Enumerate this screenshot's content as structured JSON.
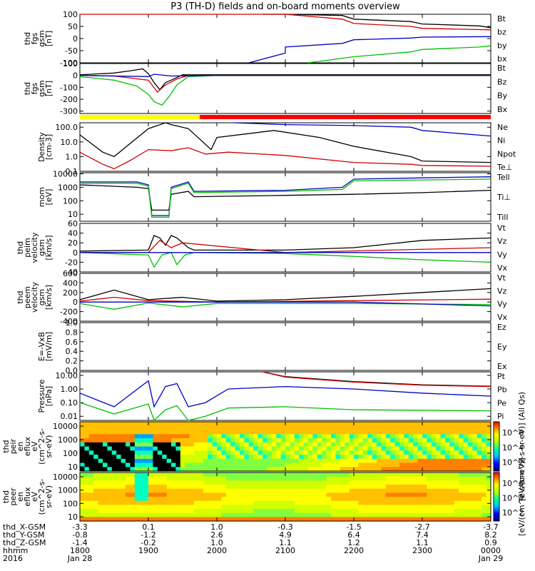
{
  "title": "P3 (TH-D) fields and on-board moments overview",
  "chart_data": [
    {
      "id": "fgs_zoom",
      "type": "line",
      "ylabel": [
        "thd",
        "fgs",
        "gsm",
        "[nT]"
      ],
      "ylim": [
        -100,
        100
      ],
      "yticks": [
        "100",
        "50",
        "0",
        "-50",
        "-100"
      ],
      "log": false,
      "series": [
        {
          "name": "Bt",
          "color": "#000000",
          "x": [
            2040,
            2100,
            2150,
            2200,
            2250,
            2300,
            2350,
            2400
          ],
          "y": [
            100,
            100,
            95,
            80,
            70,
            60,
            52,
            45
          ]
        },
        {
          "name": "bz",
          "color": "#d00000",
          "x": [
            1800,
            1930,
            2000,
            2100,
            2150,
            2200,
            2250,
            2300,
            2400
          ],
          "y": [
            130,
            120,
            110,
            100,
            80,
            62,
            50,
            42,
            36
          ]
        },
        {
          "name": "by",
          "color": "#00c000",
          "x": [
            2120,
            2200,
            2250,
            2300,
            2350,
            2400
          ],
          "y": [
            -100,
            -75,
            -55,
            -45,
            -35,
            -30
          ]
        },
        {
          "name": "bx",
          "color": "#0000c0",
          "x": [
            2028,
            2060,
            2100,
            2150,
            2200,
            2250,
            2300,
            2400
          ],
          "y": [
            -100,
            -60,
            -35,
            -20,
            -5,
            2,
            6,
            8
          ]
        }
      ]
    },
    {
      "id": "fgs_full",
      "type": "line",
      "ylabel": [
        "thd",
        "fgs",
        "gsm",
        "[nT]"
      ],
      "ylim": [
        -320,
        100
      ],
      "yticks": [
        "100",
        "0",
        "-100",
        "-200",
        "-300"
      ],
      "log": false,
      "series": [
        {
          "name": "Bt",
          "color": "#000000",
          "x": [
            1800,
            1830,
            1845,
            1855,
            1900,
            1905,
            1910,
            1915,
            1920,
            1930,
            2000,
            2400
          ],
          "y": [
            5,
            20,
            40,
            55,
            15,
            -60,
            -120,
            -60,
            -40,
            5,
            5,
            5
          ]
        },
        {
          "name": "Bz",
          "color": "#d00000",
          "x": [
            1800,
            1830,
            1900,
            1908,
            1915,
            1925,
            1935,
            2000,
            2400
          ],
          "y": [
            0,
            -5,
            -40,
            -140,
            -80,
            -30,
            0,
            0,
            0
          ]
        },
        {
          "name": "By",
          "color": "#00c000",
          "x": [
            1800,
            1830,
            1850,
            1900,
            1905,
            1912,
            1918,
            1925,
            1935,
            2000,
            2400
          ],
          "y": [
            -10,
            -40,
            -90,
            -160,
            -220,
            -250,
            -180,
            -80,
            -10,
            0,
            0
          ]
        },
        {
          "name": "Bx",
          "color": "#0000c0",
          "x": [
            1800,
            1900,
            1905,
            1920,
            2000,
            2400
          ],
          "y": [
            0,
            -10,
            10,
            -5,
            0,
            0
          ]
        }
      ]
    },
    {
      "id": "density",
      "type": "line",
      "ylabel": [
        "Density",
        "[cm-3]"
      ],
      "ylim": [
        0.1,
        200
      ],
      "yticks": [
        "100.0",
        "10.0",
        "1.0",
        "0.1"
      ],
      "log": true,
      "series": [
        {
          "name": "Ne",
          "color": "#d00000",
          "x": [
            1800,
            1820,
            1830,
            1845,
            1900,
            1920,
            1935,
            1950,
            2010,
            2100,
            2200,
            2250,
            2300,
            2400
          ],
          "y": [
            2,
            0.3,
            0.15,
            0.6,
            3,
            2.5,
            4,
            1.5,
            2,
            1.2,
            0.4,
            0.3,
            0.25,
            0.22
          ]
        },
        {
          "name": "Ni",
          "color": "#000000",
          "x": [
            1800,
            1820,
            1830,
            1900,
            1915,
            1920,
            1935,
            1955,
            2000,
            2050,
            2130,
            2200,
            2250,
            2300,
            2400
          ],
          "y": [
            30,
            2,
            1,
            80,
            250,
            150,
            80,
            3,
            20,
            60,
            20,
            5,
            1,
            0.5,
            0.4
          ]
        },
        {
          "name": "Npot",
          "color": "#0000c0",
          "x": [
            2015,
            2030,
            2100,
            2200,
            2250,
            2300,
            2400
          ],
          "y": [
            300,
            180,
            150,
            130,
            100,
            60,
            25
          ]
        },
        {
          "name": "Te⊥",
          "color": "#d00000",
          "x": [],
          "y": []
        }
      ]
    },
    {
      "id": "temperature",
      "type": "line",
      "ylabel": [
        "mom",
        "[eV]"
      ],
      "ylim": [
        3,
        12000
      ],
      "yticks": [
        "10000",
        "1000",
        "100",
        "10"
      ],
      "log": true,
      "series": [
        {
          "name": "Tell",
          "color": "#000000",
          "x": [
            1800,
            1850,
            1900,
            1903,
            1918,
            1920,
            1935,
            1940,
            2100,
            2200,
            2300,
            2400
          ],
          "y": [
            1500,
            1000,
            800,
            20,
            20,
            300,
            500,
            200,
            250,
            300,
            400,
            600
          ]
        },
        {
          "name": "Ti⊥",
          "color": "#0000c0",
          "x": [
            1800,
            1850,
            1900,
            1903,
            1918,
            1920,
            1935,
            1940,
            2100,
            2150,
            2200,
            2300,
            2400
          ],
          "y": [
            2500,
            2500,
            1500,
            8,
            8,
            1000,
            2500,
            500,
            600,
            1000,
            4000,
            5000,
            6000
          ]
        },
        {
          "name": "Till",
          "color": "#00c000",
          "x": [
            1800,
            1850,
            1900,
            1903,
            1918,
            1920,
            1935,
            1940,
            2100,
            2150,
            2200,
            2300,
            2400
          ],
          "y": [
            2000,
            2000,
            1200,
            6,
            6,
            800,
            2000,
            400,
            500,
            700,
            3000,
            3500,
            4000
          ]
        }
      ]
    },
    {
      "id": "peim_velocity",
      "type": "line",
      "ylabel": [
        "thd",
        "peim",
        "velocity",
        "gsm",
        "[km/s]"
      ],
      "ylim": [
        -40,
        60
      ],
      "yticks": [
        "60",
        "40",
        "20",
        "0",
        "-20",
        "-40"
      ],
      "log": false,
      "series": [
        {
          "name": "Vt",
          "color": "#000000",
          "x": [
            1800,
            1900,
            1905,
            1910,
            1915,
            1920,
            1925,
            1930,
            1935,
            1940,
            2100,
            2200,
            2300,
            2400
          ],
          "y": [
            3,
            5,
            35,
            30,
            15,
            35,
            30,
            20,
            10,
            5,
            5,
            10,
            25,
            30
          ]
        },
        {
          "name": "Vz",
          "color": "#d00000",
          "x": [
            1800,
            1900,
            1910,
            1920,
            1930,
            2100,
            2400
          ],
          "y": [
            0,
            0,
            25,
            10,
            20,
            0,
            10
          ]
        },
        {
          "name": "Vy",
          "color": "#00c000",
          "x": [
            1800,
            1900,
            1905,
            1912,
            1920,
            1925,
            1932,
            1940,
            2100,
            2200,
            2300,
            2400
          ],
          "y": [
            0,
            -5,
            -30,
            -5,
            0,
            -25,
            -5,
            0,
            -2,
            -8,
            -15,
            -20
          ]
        },
        {
          "name": "Vx",
          "color": "#0000c0",
          "x": [
            1800,
            2400
          ],
          "y": [
            0,
            0
          ]
        }
      ]
    },
    {
      "id": "peem_velocity",
      "type": "line",
      "ylabel": [
        "thd",
        "peem",
        "velocity",
        "gsm",
        "[km/s]"
      ],
      "ylim": [
        -400,
        600
      ],
      "yticks": [
        "600",
        "400",
        "200",
        "0",
        "-200",
        "-400"
      ],
      "log": false,
      "series": [
        {
          "name": "Vt",
          "color": "#000000",
          "x": [
            1800,
            1830,
            1900,
            1930,
            2000,
            2100,
            2200,
            2300,
            2400
          ],
          "y": [
            50,
            250,
            50,
            100,
            20,
            50,
            120,
            200,
            280
          ]
        },
        {
          "name": "Vz",
          "color": "#d00000",
          "x": [
            1800,
            1830,
            1900,
            2000,
            2200,
            2400
          ],
          "y": [
            20,
            100,
            30,
            0,
            30,
            60
          ]
        },
        {
          "name": "Vy",
          "color": "#00c000",
          "x": [
            1800,
            1830,
            1900,
            1930,
            2000,
            2200,
            2400
          ],
          "y": [
            -30,
            -150,
            -20,
            -100,
            -30,
            -30,
            -50
          ]
        },
        {
          "name": "Vx",
          "color": "#0000c0",
          "x": [
            1800,
            2200,
            2400
          ],
          "y": [
            0,
            0,
            -80
          ]
        }
      ]
    },
    {
      "id": "efield",
      "type": "line",
      "ylabel": [
        "E=-VxB",
        "[mV/m]"
      ],
      "ylim": [
        0,
        1
      ],
      "yticks": [
        "1.0",
        "0.8",
        "0.6",
        "0.4",
        "0.2",
        "0.0"
      ],
      "log": false,
      "series": [
        {
          "name": "Ez",
          "color": "#d00000",
          "x": [],
          "y": []
        },
        {
          "name": "Ey",
          "color": "#00c000",
          "x": [],
          "y": []
        },
        {
          "name": "Ex",
          "color": "#0000c0",
          "x": [],
          "y": []
        }
      ]
    },
    {
      "id": "pressure",
      "type": "line",
      "ylabel": [
        "Pressure",
        "[nPa]"
      ],
      "ylim": [
        0.005,
        18
      ],
      "yticks": [
        "10.00",
        "1.00",
        "0.10",
        "0.01"
      ],
      "log": true,
      "series": [
        {
          "name": "Pt",
          "color": "#000000",
          "x": [
            2040,
            2100,
            2200,
            2300,
            2400
          ],
          "y": [
            20,
            8,
            3.5,
            2,
            1.6
          ]
        },
        {
          "name": "Pb",
          "color": "#d00000",
          "x": [
            2040,
            2100,
            2200,
            2300,
            2400
          ],
          "y": [
            19,
            7.5,
            3.2,
            1.9,
            1.5
          ]
        },
        {
          "name": "Pe",
          "color": "#00c000",
          "x": [
            1800,
            1830,
            1900,
            1905,
            1915,
            1925,
            1935,
            1950,
            2010,
            2100,
            2200,
            2400
          ],
          "y": [
            0.1,
            0.015,
            0.08,
            0.004,
            0.03,
            0.06,
            0.005,
            0.01,
            0.04,
            0.05,
            0.03,
            0.025
          ]
        },
        {
          "name": "Pi",
          "color": "#0000c0",
          "x": [
            1800,
            1830,
            1900,
            1905,
            1915,
            1925,
            1935,
            1950,
            2010,
            2100,
            2200,
            2300,
            2400
          ],
          "y": [
            0.5,
            0.05,
            4,
            0.05,
            1.5,
            2.5,
            0.05,
            0.1,
            1,
            1.5,
            1,
            0.5,
            0.3
          ]
        }
      ]
    },
    {
      "id": "peir_spec",
      "type": "heatmap",
      "ylabel": [
        "thd",
        "peir",
        "en",
        "eflux",
        "eV",
        "(cm^2-s-",
        "sr-eV)"
      ],
      "yticks": [
        "10000",
        "1000",
        "100",
        "10"
      ],
      "colorbar": {
        "label": "[eV/(cm^2-s-sr-eV)] (All Qs)",
        "ticks": [
          "10^6",
          "10^4",
          "10^2"
        ]
      }
    },
    {
      "id": "peer_spec",
      "type": "heatmap",
      "ylabel": [
        "thd",
        "peer",
        "en",
        "eflux",
        "eV",
        "(cm^2-s-",
        "sr-eV)"
      ],
      "yticks": [
        "10000",
        "1000",
        "100",
        "10"
      ],
      "colorbar": {
        "label": "[eV/(cm^2-s-sr-eV)]",
        "ticks": [
          "10^6",
          "10^4",
          "10^2"
        ]
      }
    }
  ],
  "bar_colors": {
    "yellow": "#ffff00",
    "red": "#ff0000"
  },
  "time_axis": {
    "row_labels": [
      "thd_X-GSM",
      "thd_Y-GSM",
      "thd_Z-GSM",
      "hhmm",
      "2016"
    ],
    "columns": [
      {
        "x": "-3.3",
        "y": "-0.8",
        "z": "-1.4",
        "t": "1800",
        "d": "Jan 28"
      },
      {
        "x": "0.1",
        "y": "-1.2",
        "z": "-0.2",
        "t": "1900",
        "d": ""
      },
      {
        "x": "1.0",
        "y": "2.6",
        "z": "1.0",
        "t": "2000",
        "d": ""
      },
      {
        "x": "-0.3",
        "y": "4.9",
        "z": "1.1",
        "t": "2100",
        "d": ""
      },
      {
        "x": "-1.5",
        "y": "6.4",
        "z": "1.2",
        "t": "2200",
        "d": ""
      },
      {
        "x": "-2.7",
        "y": "7.4",
        "z": "1.1",
        "t": "2300",
        "d": ""
      },
      {
        "x": "-3.7",
        "y": "8.2",
        "z": "0.9",
        "t": "0000",
        "d": "Jan 29"
      }
    ]
  }
}
